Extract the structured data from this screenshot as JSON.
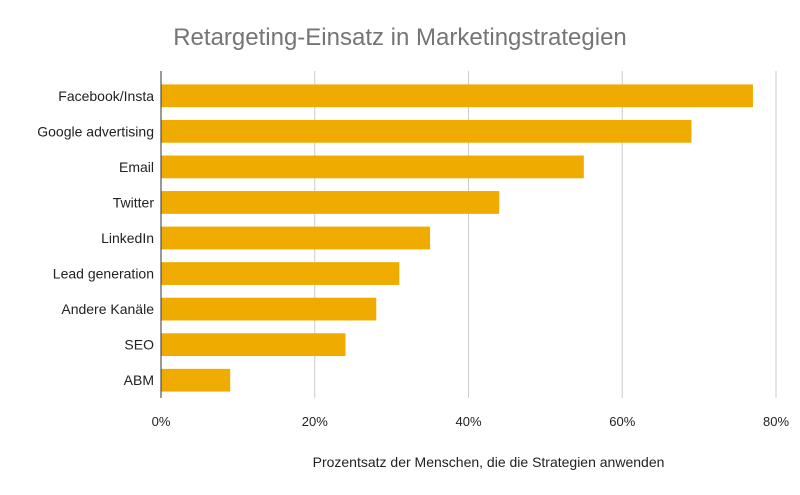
{
  "chart_data": {
    "type": "bar",
    "orientation": "horizontal",
    "title": "Retargeting-Einsatz in Marketingstrategien",
    "xlabel": "Prozentsatz der Menschen, die die Strategien anwenden",
    "ylabel": "",
    "categories": [
      "Facebook/Insta",
      "Google advertising",
      "Email",
      "Twitter",
      "LinkedIn",
      "Lead generation",
      "Andere Kanäle",
      "SEO",
      "ABM"
    ],
    "values": [
      77,
      69,
      55,
      44,
      35,
      31,
      28,
      24,
      9
    ],
    "xlim": [
      0,
      80
    ],
    "ticks": [
      0,
      20,
      40,
      60,
      80
    ],
    "tick_labels": [
      "0%",
      "20%",
      "40%",
      "60%",
      "80%"
    ],
    "bar_color": "#f0ab00",
    "grid": true
  }
}
